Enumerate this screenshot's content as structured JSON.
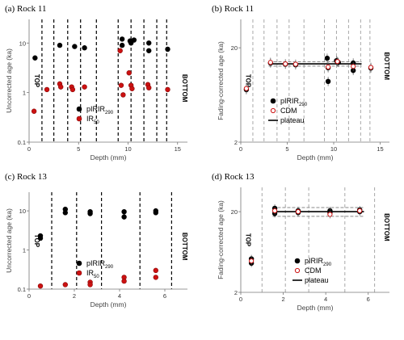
{
  "chart_data": [
    {
      "type": "scatter",
      "title": "(a) Rock 11",
      "xlabel": "Depth (mm)",
      "ylabel": "Uncorrected age (ka)",
      "xlim": [
        0,
        16
      ],
      "ylim": [
        0.1,
        30
      ],
      "yscale": "log",
      "xticks": [
        "0",
        "5",
        "10",
        "15"
      ],
      "yticks": [
        "0.1",
        "1",
        "10"
      ],
      "side_labels": {
        "left": "TOP",
        "right": "BOTTOM"
      },
      "boundaries_style": "black dashed",
      "boundaries": [
        1.3,
        2.5,
        3.9,
        5.2,
        6.8,
        9.0,
        10.3,
        11.6,
        12.9,
        13.9
      ],
      "legend": [
        {
          "label": "pIRIR",
          "sub": "290",
          "color": "#000000"
        },
        {
          "label": "IR",
          "sub": "50",
          "color": "#cc1111"
        }
      ],
      "series": [
        {
          "name": "pIRIR290",
          "color": "#000000",
          "points": [
            [
              0.6,
              5.0
            ],
            [
              3.1,
              9.0
            ],
            [
              4.6,
              8.5
            ],
            [
              5.6,
              8.0
            ],
            [
              9.4,
              12.0
            ],
            [
              9.4,
              9.0
            ],
            [
              10.2,
              11.0
            ],
            [
              10.3,
              10.0
            ],
            [
              10.6,
              11.5
            ],
            [
              12.1,
              10.0
            ],
            [
              12.1,
              7.0
            ],
            [
              14.0,
              7.5
            ]
          ]
        },
        {
          "name": "IR50",
          "color": "#cc1111",
          "points": [
            [
              0.5,
              0.42
            ],
            [
              1.8,
              1.15
            ],
            [
              3.1,
              1.5
            ],
            [
              3.2,
              1.3
            ],
            [
              4.3,
              1.3
            ],
            [
              4.4,
              1.15
            ],
            [
              5.6,
              1.3
            ],
            [
              9.2,
              7.0
            ],
            [
              9.3,
              1.4
            ],
            [
              9.5,
              0.9
            ],
            [
              10.1,
              2.5
            ],
            [
              10.3,
              1.4
            ],
            [
              10.4,
              1.2
            ],
            [
              12.0,
              1.45
            ],
            [
              12.1,
              1.25
            ],
            [
              14.0,
              1.15
            ]
          ]
        }
      ]
    },
    {
      "type": "scatter",
      "title": "(b) Rock 11",
      "xlabel": "Depth (mm)",
      "ylabel": "Fading-corrected age (ka)",
      "xlim": [
        0,
        16
      ],
      "ylim": [
        2,
        40
      ],
      "yscale": "log",
      "xticks": [
        "0",
        "5",
        "10",
        "15"
      ],
      "yticks": [
        "2",
        "20"
      ],
      "side_labels": {
        "left": "TOP",
        "right": "BOTTOM"
      },
      "boundaries_style": "grey dashed",
      "boundaries": [
        1.3,
        2.5,
        3.9,
        5.2,
        6.8,
        9.0,
        10.3,
        11.6,
        12.9,
        13.9
      ],
      "plateau": {
        "value": 13.5,
        "band": [
          12.8,
          14.2
        ],
        "x": [
          3.0,
          13.0
        ]
      },
      "legend": [
        {
          "label": "pIRIR",
          "sub": "290",
          "color": "#000000"
        },
        {
          "label": "CDM",
          "sub": "",
          "color": "#cc1111"
        },
        {
          "label": "plateau",
          "sub": "",
          "color": "#000000"
        }
      ],
      "series": [
        {
          "name": "pIRIR290",
          "color": "#000000",
          "points": [
            [
              0.6,
              7.2
            ],
            [
              3.2,
              13.8
            ],
            [
              4.8,
              13.4
            ],
            [
              5.9,
              13.2
            ],
            [
              9.3,
              15.5
            ],
            [
              9.4,
              12.3
            ],
            [
              9.4,
              8.8
            ],
            [
              10.3,
              14.6
            ],
            [
              10.5,
              14.0
            ],
            [
              12.1,
              13.8
            ],
            [
              12.1,
              11.5
            ],
            [
              14.0,
              12.2
            ]
          ]
        },
        {
          "name": "CDM",
          "color": "#cc1111",
          "points": [
            [
              0.6,
              7.4
            ],
            [
              3.2,
              14.0
            ],
            [
              4.8,
              13.5
            ],
            [
              5.9,
              13.4
            ],
            [
              9.4,
              12.5
            ],
            [
              10.4,
              14.3
            ],
            [
              12.1,
              12.7
            ],
            [
              14.0,
              12.4
            ]
          ]
        }
      ]
    },
    {
      "type": "scatter",
      "title": "(c) Rock 13",
      "xlabel": "Depth (mm)",
      "ylabel": "Uncorrected age (ka)",
      "xlim": [
        0,
        7
      ],
      "ylim": [
        0.1,
        30
      ],
      "yscale": "log",
      "xticks": [
        "0",
        "2",
        "4",
        "6"
      ],
      "yticks": [
        "0.1",
        "1",
        "10"
      ],
      "side_labels": {
        "left": "TOP",
        "right": "BOTTOM"
      },
      "boundaries_style": "black dashed",
      "boundaries": [
        1.0,
        2.1,
        3.2,
        4.9,
        6.3
      ],
      "legend": [
        {
          "label": "pIRIR",
          "sub": "290",
          "color": "#000000"
        },
        {
          "label": "IR",
          "sub": "50",
          "color": "#cc1111"
        }
      ],
      "series": [
        {
          "name": "pIRIR290",
          "color": "#000000",
          "points": [
            [
              0.5,
              2.3
            ],
            [
              0.5,
              2.0
            ],
            [
              1.6,
              11.0
            ],
            [
              1.6,
              9.0
            ],
            [
              2.7,
              9.5
            ],
            [
              2.7,
              8.5
            ],
            [
              4.2,
              9.5
            ],
            [
              4.2,
              7.0
            ],
            [
              5.6,
              10.0
            ],
            [
              5.6,
              9.0
            ]
          ]
        },
        {
          "name": "IR50",
          "color": "#cc1111",
          "points": [
            [
              0.5,
              0.12
            ],
            [
              1.6,
              0.13
            ],
            [
              2.7,
              0.15
            ],
            [
              2.7,
              0.13
            ],
            [
              4.2,
              0.2
            ],
            [
              4.2,
              0.16
            ],
            [
              5.6,
              0.3
            ],
            [
              5.6,
              0.2
            ]
          ]
        }
      ]
    },
    {
      "type": "scatter",
      "title": "(d) Rock 13",
      "xlabel": "Depth (mm)",
      "ylabel": "Fading-corrected age (ka)",
      "xlim": [
        0,
        7
      ],
      "ylim": [
        2,
        40
      ],
      "yscale": "log",
      "xticks": [
        "0",
        "2",
        "4",
        "6"
      ],
      "yticks": [
        "2",
        "20"
      ],
      "side_labels": {
        "left": "TOP",
        "right": "BOTTOM"
      },
      "boundaries_style": "grey dashed",
      "boundaries": [
        1.0,
        2.1,
        3.2,
        4.9,
        6.3
      ],
      "plateau": {
        "value": 20.0,
        "band": [
          17.5,
          22.5
        ],
        "x": [
          1.5,
          5.8
        ]
      },
      "legend": [
        {
          "label": "pIRIR",
          "sub": "290",
          "color": "#000000"
        },
        {
          "label": "CDM",
          "sub": "",
          "color": "#cc1111"
        },
        {
          "label": "plateau",
          "sub": "",
          "color": "#000000"
        }
      ],
      "series": [
        {
          "name": "pIRIR290",
          "color": "#000000",
          "points": [
            [
              0.5,
              5.2
            ],
            [
              0.5,
              4.6
            ],
            [
              1.6,
              22.0
            ],
            [
              1.6,
              19.0
            ],
            [
              2.7,
              20.5
            ],
            [
              2.7,
              19.5
            ],
            [
              4.2,
              20.5
            ],
            [
              4.2,
              19.5
            ],
            [
              5.6,
              21.0
            ],
            [
              5.6,
              20.0
            ]
          ]
        },
        {
          "name": "CDM",
          "color": "#cc1111",
          "points": [
            [
              0.5,
              4.9
            ],
            [
              1.6,
              20.5
            ],
            [
              2.7,
              20.0
            ],
            [
              4.2,
              18.5
            ],
            [
              5.6,
              20.5
            ]
          ]
        }
      ]
    }
  ]
}
